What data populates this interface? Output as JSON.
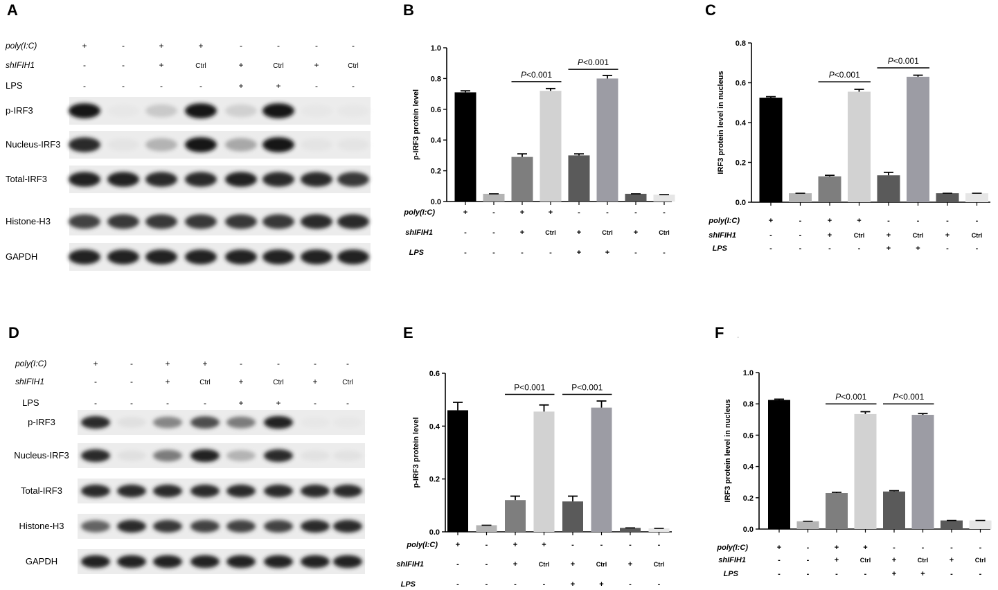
{
  "panel_letters": [
    "A",
    "B",
    "C",
    "D",
    "E",
    "F",
    "-"
  ],
  "conditions": {
    "poly": [
      "+",
      "-",
      "+",
      "+",
      "-",
      "-",
      "-",
      "-"
    ],
    "shIFIH1": [
      "-",
      "-",
      "+",
      "Ctrl",
      "+",
      "Ctrl",
      "+",
      "Ctrl"
    ],
    "LPS": [
      "-",
      "-",
      "-",
      "-",
      "+",
      "+",
      "-",
      "-"
    ]
  },
  "condition_labels": {
    "poly": "poly(I:C)",
    "shIFIH1": "shIFIH1",
    "LPS": "LPS"
  },
  "blots": {
    "A": {
      "rows": [
        {
          "label": "p-IRF3",
          "intensity": [
            0.95,
            0.02,
            0.15,
            0.95,
            0.12,
            0.95,
            0.02,
            0.02
          ]
        },
        {
          "label": "Nucleus-IRF3",
          "intensity": [
            0.85,
            0.03,
            0.25,
            0.95,
            0.3,
            0.95,
            0.03,
            0.03
          ]
        },
        {
          "label": "Total-IRF3",
          "intensity": [
            0.9,
            0.9,
            0.85,
            0.85,
            0.9,
            0.85,
            0.85,
            0.8
          ]
        },
        {
          "label": "Histone-H3",
          "intensity": [
            0.75,
            0.8,
            0.8,
            0.8,
            0.8,
            0.8,
            0.85,
            0.85
          ]
        },
        {
          "label": "GAPDH",
          "intensity": [
            0.9,
            0.9,
            0.9,
            0.9,
            0.9,
            0.9,
            0.9,
            0.9
          ]
        }
      ]
    },
    "D": {
      "rows": [
        {
          "label": "p-IRF3",
          "intensity": [
            0.85,
            0.05,
            0.45,
            0.7,
            0.5,
            0.9,
            0.02,
            0.02
          ]
        },
        {
          "label": "Nucleus-IRF3",
          "intensity": [
            0.85,
            0.05,
            0.5,
            0.9,
            0.25,
            0.85,
            0.04,
            0.04
          ]
        },
        {
          "label": "Total-IRF3",
          "intensity": [
            0.85,
            0.85,
            0.85,
            0.85,
            0.85,
            0.85,
            0.85,
            0.85
          ]
        },
        {
          "label": "Histone-H3",
          "intensity": [
            0.6,
            0.85,
            0.8,
            0.75,
            0.75,
            0.75,
            0.85,
            0.85
          ]
        },
        {
          "label": "GAPDH",
          "intensity": [
            0.9,
            0.9,
            0.9,
            0.9,
            0.9,
            0.9,
            0.9,
            0.9
          ]
        }
      ]
    }
  },
  "colors": [
    "#000000",
    "#b4b4b4",
    "#7e7e7e",
    "#d2d2d2",
    "#5a5a5a",
    "#9c9ca4",
    "#595959",
    "#e6e6e6"
  ],
  "chart_data": [
    {
      "panel": "B",
      "type": "bar",
      "ylabel": "p-IRF3 protein level",
      "ylim": [
        0,
        1.0
      ],
      "yticks": [
        "0.0",
        "0.2",
        "0.4",
        "0.6",
        "0.8",
        "1.0"
      ],
      "values": [
        0.71,
        0.05,
        0.29,
        0.72,
        0.3,
        0.8,
        0.05,
        0.045
      ],
      "errors": [
        0.01,
        0.0,
        0.02,
        0.015,
        0.01,
        0.02,
        0.0,
        0.0
      ],
      "significance": [
        {
          "from": 2,
          "to": 3,
          "label": "P<0.001",
          "y": 0.78
        },
        {
          "from": 4,
          "to": 5,
          "label": "P<0.001",
          "y": 0.86
        }
      ]
    },
    {
      "panel": "C",
      "type": "bar",
      "ylabel": "IRF3 protein level in nucleus",
      "ylim": [
        0,
        0.8
      ],
      "yticks": [
        "0.0",
        "0.2",
        "0.4",
        "0.6",
        "0.8"
      ],
      "values": [
        0.525,
        0.045,
        0.13,
        0.555,
        0.135,
        0.63,
        0.045,
        0.045
      ],
      "errors": [
        0.005,
        0.0,
        0.005,
        0.012,
        0.015,
        0.008,
        0.0,
        0.0
      ],
      "significance": [
        {
          "from": 2,
          "to": 3,
          "label": "P<0.001",
          "y": 0.605
        },
        {
          "from": 4,
          "to": 5,
          "label": "P<0.001",
          "y": 0.675
        }
      ]
    },
    {
      "panel": "E",
      "type": "bar",
      "ylabel": "p-IRF3 protein level",
      "ylim": [
        0,
        0.6
      ],
      "yticks": [
        "0.0",
        "0.2",
        "0.4",
        "0.6"
      ],
      "values": [
        0.46,
        0.025,
        0.12,
        0.455,
        0.115,
        0.47,
        0.015,
        0.013
      ],
      "errors": [
        0.03,
        0.0,
        0.015,
        0.025,
        0.02,
        0.025,
        0.0,
        0.0
      ],
      "significance": [
        {
          "from": 2,
          "to": 3,
          "label": "P<0.001",
          "y": 0.52
        },
        {
          "from": 4,
          "to": 5,
          "label": "P<0.001",
          "y": 0.52
        }
      ]
    },
    {
      "panel": "F",
      "type": "bar",
      "ylabel": "IRF3 protein level in nucleus",
      "ylim": [
        0,
        1.0
      ],
      "yticks": [
        "0.0",
        "0.2",
        "0.4",
        "0.6",
        "0.8",
        "1.0"
      ],
      "values": [
        0.825,
        0.05,
        0.23,
        0.735,
        0.24,
        0.73,
        0.055,
        0.055
      ],
      "errors": [
        0.005,
        0.0,
        0.005,
        0.015,
        0.005,
        0.008,
        0.0,
        0.0
      ],
      "significance": [
        {
          "from": 2,
          "to": 3,
          "label": "P<0.001",
          "y": 0.8
        },
        {
          "from": 4,
          "to": 5,
          "label": "P<0.001",
          "y": 0.8
        }
      ]
    }
  ]
}
